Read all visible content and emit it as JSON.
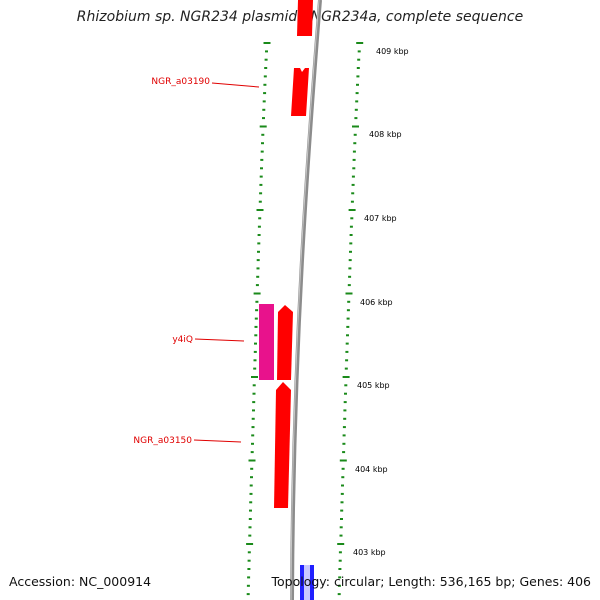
{
  "title": "Rhizobium sp. NGR234 plasmid pNGR234a, complete sequence",
  "accession": "Accession: NC_000914",
  "topology": "Topology: circular; Length: 536,165 bp; Genes: 406",
  "scale_labels": [
    "409 kbp",
    "408 kbp",
    "407 kbp",
    "406 kbp",
    "405 kbp",
    "404 kbp",
    "403 kbp"
  ],
  "gene_labels": [
    "NGR_a03190",
    "y4iQ",
    "NGR_a03150"
  ],
  "colors": {
    "tick": "#1a8a1a",
    "gene_red": "#ff0000",
    "gene_magenta": "#e8128c",
    "gene_blue": "#2020ff",
    "backbone": "#8c8c8c",
    "label": "#e00000"
  }
}
